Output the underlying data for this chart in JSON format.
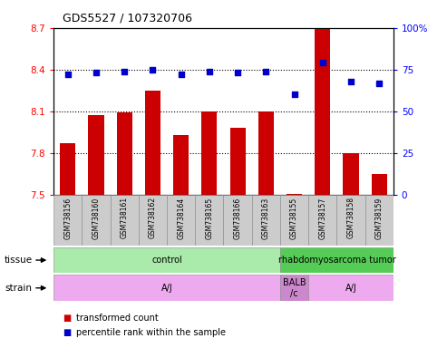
{
  "title": "GDS5527 / 107320706",
  "samples": [
    "GSM738156",
    "GSM738160",
    "GSM738161",
    "GSM738162",
    "GSM738164",
    "GSM738165",
    "GSM738166",
    "GSM738163",
    "GSM738155",
    "GSM738157",
    "GSM738158",
    "GSM738159"
  ],
  "bar_values": [
    7.87,
    8.07,
    8.09,
    8.25,
    7.93,
    8.1,
    7.98,
    8.1,
    7.51,
    8.7,
    7.8,
    7.65
  ],
  "dot_values": [
    72,
    73,
    74,
    75,
    72,
    74,
    73,
    74,
    60,
    79,
    68,
    67
  ],
  "ylim_left": [
    7.5,
    8.7
  ],
  "ylim_right": [
    0,
    100
  ],
  "yticks_left": [
    7.5,
    7.8,
    8.1,
    8.4,
    8.7
  ],
  "yticks_right": [
    0,
    25,
    50,
    75,
    100
  ],
  "bar_color": "#cc0000",
  "dot_color": "#0000cc",
  "tissue_groups": [
    {
      "label": "control",
      "start": 0,
      "end": 8,
      "color": "#aaeaaa"
    },
    {
      "label": "rhabdomyosarcoma tumor",
      "start": 8,
      "end": 12,
      "color": "#55cc55"
    }
  ],
  "strain_groups": [
    {
      "label": "A/J",
      "start": 0,
      "end": 8,
      "color": "#eeaaee"
    },
    {
      "label": "BALB\n/c",
      "start": 8,
      "end": 9,
      "color": "#cc88cc"
    },
    {
      "label": "A/J",
      "start": 9,
      "end": 12,
      "color": "#eeaaee"
    }
  ],
  "hlines": [
    7.8,
    8.1,
    8.4
  ],
  "legend_items": [
    {
      "color": "#cc0000",
      "label": "transformed count"
    },
    {
      "color": "#0000cc",
      "label": "percentile rank within the sample"
    }
  ],
  "fig_width": 4.93,
  "fig_height": 3.84,
  "dpi": 100
}
